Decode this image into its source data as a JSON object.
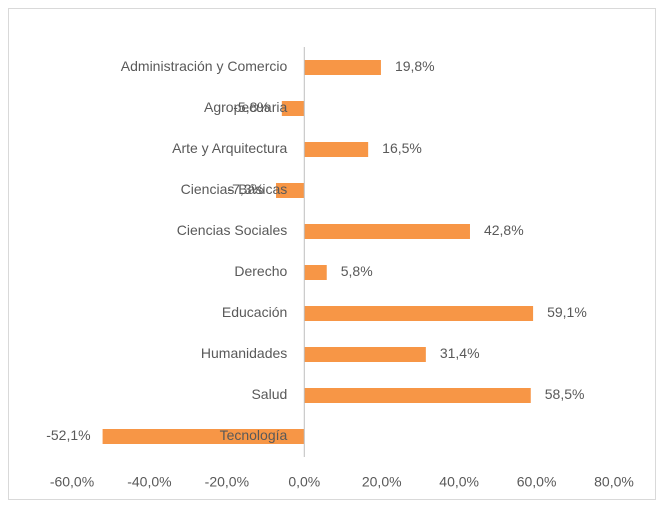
{
  "chart_data": {
    "type": "bar",
    "orientation": "horizontal",
    "color": "#f79646",
    "categories": [
      "Administración y Comercio",
      "Agropecuaria",
      "Arte y Arquitectura",
      "Ciencias Básicas",
      "Ciencias Sociales",
      "Derecho",
      "Educación",
      "Humanidades",
      "Salud",
      "Tecnología"
    ],
    "values": [
      19.8,
      -5.8,
      16.5,
      -7.3,
      42.8,
      5.8,
      59.1,
      31.4,
      58.5,
      -52.1
    ],
    "value_labels": [
      "19,8%",
      "-5,8%",
      "16,5%",
      "-7,3%",
      "42,8%",
      "5,8%",
      "59,1%",
      "31,4%",
      "58,5%",
      "-52,1%"
    ],
    "xlim": [
      -60,
      80
    ],
    "xticks": [
      {
        "value": -60,
        "label": "-60,0%"
      },
      {
        "value": -40,
        "label": "-40,0%"
      },
      {
        "value": -20,
        "label": "-20,0%"
      },
      {
        "value": 0,
        "label": "0,0%"
      },
      {
        "value": 20,
        "label": "20,0%"
      },
      {
        "value": 40,
        "label": "40,0%"
      },
      {
        "value": 60,
        "label": "60,0%"
      },
      {
        "value": 80,
        "label": "80,0%"
      }
    ],
    "grid": false
  }
}
